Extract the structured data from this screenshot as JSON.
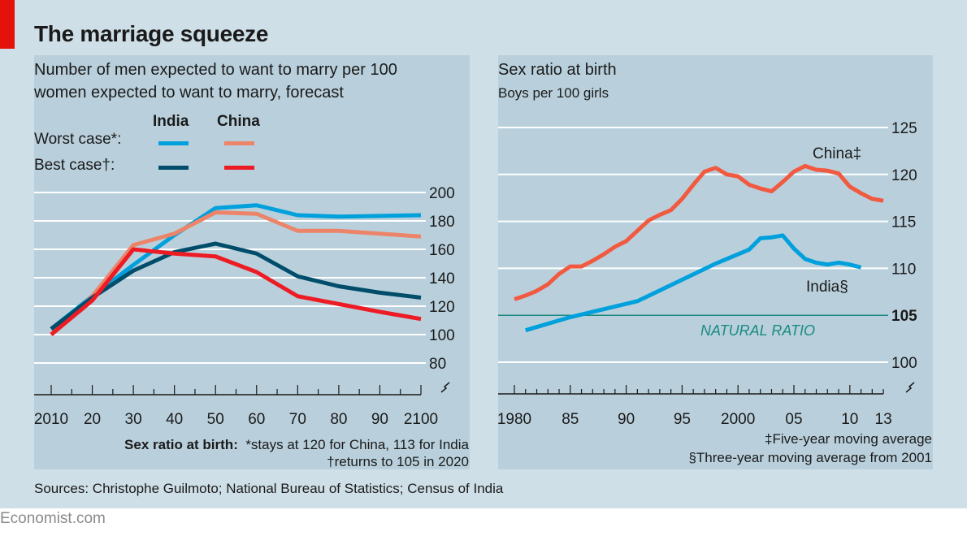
{
  "header": {
    "title": "The marriage squeeze",
    "brand_color": "#e3120b"
  },
  "left_panel": {
    "subtitle_line1": "Number of men expected to want to marry per 100",
    "subtitle_line2": "women expected to want to marry, forecast",
    "legend": {
      "col_india": "India",
      "col_china": "China",
      "row_worst": "Worst case*:",
      "row_best": "Best case†:"
    },
    "footnote_label": "Sex ratio at birth:",
    "footnote_1": "*stays at 120 for China, 113 for India",
    "footnote_2": "†returns to 105 in 2020"
  },
  "right_panel": {
    "subtitle": "Sex ratio at birth",
    "unit": "Boys per 100 girls",
    "label_china": "China‡",
    "label_india": "India§",
    "label_natural": "NATURAL RATIO",
    "footnote_1": "‡Five-year moving average",
    "footnote_2": "§Three-year moving average from 2001"
  },
  "footer": {
    "sources": "Sources: Christophe Guilmoto; National Bureau of Statistics; Census of India",
    "brand": "Economist.com"
  },
  "chart_data": [
    {
      "type": "line",
      "title": "Number of men expected to want to marry per 100 women expected to want to marry, forecast",
      "x": [
        2010,
        2020,
        2030,
        2040,
        2050,
        2060,
        2070,
        2080,
        2090,
        2100
      ],
      "xtick_labels": [
        "2010",
        "20",
        "30",
        "40",
        "50",
        "60",
        "70",
        "80",
        "90",
        "2100"
      ],
      "ylim": [
        80,
        200
      ],
      "yticks": [
        80,
        100,
        120,
        140,
        160,
        180,
        200
      ],
      "ytick_labels": [
        "80",
        "100",
        "120",
        "140",
        "160",
        "180",
        "200"
      ],
      "y_axis_break": true,
      "grid": true,
      "legend_placement": "top-left",
      "series": [
        {
          "name": "India Worst case",
          "color": "#00a0dc",
          "values": [
            104,
            127,
            149,
            170,
            189,
            191,
            184,
            183,
            183.5,
            184
          ]
        },
        {
          "name": "China Worst case",
          "color": "#ec8469",
          "values": [
            100,
            127,
            163,
            171,
            186,
            185,
            173,
            173,
            171,
            169
          ]
        },
        {
          "name": "India Best case",
          "color": "#004d6b",
          "values": [
            104,
            126,
            145,
            158,
            164,
            157,
            141,
            134,
            129.5,
            126
          ]
        },
        {
          "name": "China Best case",
          "color": "#ed1c24",
          "values": [
            100,
            124,
            160,
            157,
            155,
            144,
            127,
            121.5,
            116,
            111
          ]
        }
      ]
    },
    {
      "type": "line",
      "title": "Sex ratio at birth",
      "ylabel": "Boys per 100 girls",
      "xlim": [
        1980,
        2013
      ],
      "xtick_values": [
        1980,
        1985,
        1990,
        1995,
        2000,
        2005,
        2010,
        2013
      ],
      "xtick_labels": [
        "1980",
        "85",
        "90",
        "95",
        "2000",
        "05",
        "10",
        "13"
      ],
      "ylim": [
        100,
        125
      ],
      "yticks": [
        100,
        105,
        110,
        115,
        120,
        125
      ],
      "ytick_labels": [
        "100",
        "105",
        "110",
        "115",
        "120",
        "125"
      ],
      "y_axis_break": true,
      "grid": true,
      "reference_line": {
        "label": "NATURAL RATIO",
        "value": 105,
        "color": "#1a8a82"
      },
      "series": [
        {
          "name": "China‡",
          "color": "#f15a40",
          "x": [
            1980,
            1981,
            1982,
            1983,
            1984,
            1985,
            1986,
            1987,
            1988,
            1989,
            1990,
            1991,
            1992,
            1993,
            1994,
            1995,
            1996,
            1997,
            1998,
            1999,
            2000,
            2001,
            2002,
            2003,
            2004,
            2005,
            2006,
            2007,
            2008,
            2009,
            2010,
            2011,
            2012,
            2013
          ],
          "values": [
            106.7,
            107.1,
            107.6,
            108.3,
            109.4,
            110.2,
            110.2,
            110.8,
            111.5,
            112.3,
            112.9,
            114.0,
            115.1,
            115.7,
            116.2,
            117.4,
            118.9,
            120.3,
            120.7,
            120.0,
            119.8,
            118.9,
            118.5,
            118.2,
            119.2,
            120.3,
            120.9,
            120.5,
            120.4,
            120.1,
            118.7,
            118.0,
            117.4,
            117.2
          ]
        },
        {
          "name": "India§",
          "color": "#00a0dc",
          "x": [
            1981,
            1985,
            1991,
            1998,
            2001,
            2002,
            2003,
            2004,
            2005,
            2006,
            2007,
            2008,
            2009,
            2010,
            2011
          ],
          "values": [
            103.4,
            104.8,
            106.5,
            110.5,
            112.0,
            113.2,
            113.3,
            113.5,
            112.1,
            111.0,
            110.6,
            110.4,
            110.6,
            110.4,
            110.1
          ]
        }
      ]
    }
  ]
}
